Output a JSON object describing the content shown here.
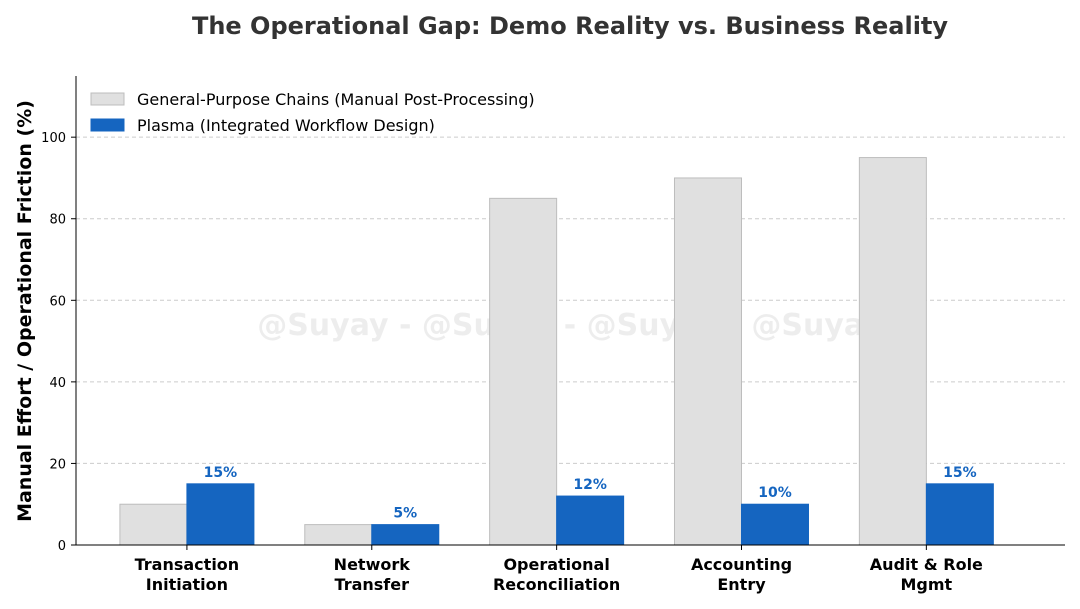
{
  "chart_data": {
    "type": "bar",
    "title": "The Operational Gap: Demo Reality vs. Business Reality",
    "xlabel": "",
    "ylabel": "Manual Effort / Operational Friction (%)",
    "ylim": [
      0,
      115
    ],
    "yticks": [
      0,
      20,
      40,
      60,
      80,
      100
    ],
    "grid": "y-dashed",
    "legend_position": "top-left",
    "categories": [
      [
        "Transaction",
        "Initiation"
      ],
      [
        "Network",
        "Transfer"
      ],
      [
        "Operational",
        "Reconciliation"
      ],
      [
        "Accounting",
        "Entry"
      ],
      [
        "Audit & Role",
        "Mgmt"
      ]
    ],
    "series": [
      {
        "name": "General-Purpose Chains (Manual Post-Processing)",
        "values": [
          10,
          5,
          85,
          90,
          95
        ],
        "color": "#e0e0e0",
        "edge_color": "#bdbdbd",
        "labels": null
      },
      {
        "name": "Plasma (Integrated Workflow Design)",
        "values": [
          15,
          5,
          12,
          10,
          15
        ],
        "color": "#1565c0",
        "edge_color": "#1565c0",
        "labels": [
          "15%",
          "5%",
          "12%",
          "10%",
          "15%"
        ]
      }
    ],
    "watermark": "@Suyay - @Suyay - @Suyay - @Suyay"
  }
}
